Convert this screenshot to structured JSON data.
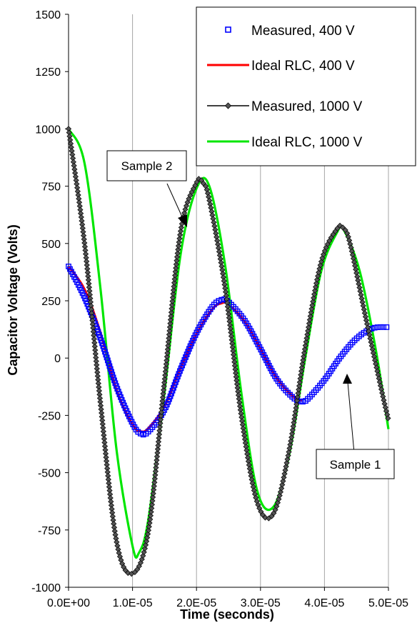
{
  "chart_data": {
    "type": "line",
    "title": "",
    "xlabel": "Time (seconds)",
    "ylabel": "Capacitor Voltage (Volts)",
    "xlim": [
      0,
      5e-05
    ],
    "ylim": [
      -1000,
      1500
    ],
    "x_ticks": [
      0,
      1e-05,
      2e-05,
      3e-05,
      4e-05,
      5e-05
    ],
    "x_tick_labels": [
      "0.0E+00",
      "1.0E-05",
      "2.0E-05",
      "3.0E-05",
      "4.0E-05",
      "5.0E-05"
    ],
    "y_ticks": [
      -1000,
      -750,
      -500,
      -250,
      0,
      250,
      500,
      750,
      1000,
      1250,
      1500
    ],
    "y_tick_labels": [
      "-1000",
      "-750",
      "-500",
      "-250",
      "0",
      "250",
      "500",
      "750",
      "1000",
      "1250",
      "1500"
    ],
    "grid": "vertical",
    "legend": {
      "placement": "top-right"
    },
    "series": [
      {
        "name": "Measured, 400 V",
        "color": "#0000ff",
        "marker": "square-open",
        "line": false,
        "x": [
          0,
          2.5e-06,
          5e-06,
          7.5e-06,
          1e-05,
          1.13e-05,
          1.25e-05,
          1.5e-05,
          1.75e-05,
          2e-05,
          2.25e-05,
          2.4e-05,
          2.5e-05,
          2.75e-05,
          3e-05,
          3.25e-05,
          3.5e-05,
          3.65e-05,
          3.75e-05,
          4e-05,
          4.25e-05,
          4.5e-05,
          4.75e-05,
          5e-05
        ],
        "y": [
          400,
          265,
          85,
          -125,
          -285,
          -330,
          -320,
          -225,
          -50,
          110,
          225,
          255,
          245,
          165,
          40,
          -90,
          -170,
          -190,
          -175,
          -95,
          5,
          85,
          130,
          135
        ]
      },
      {
        "name": "Ideal RLC, 400 V",
        "color": "#ff0000",
        "marker": "none",
        "line": true,
        "x": [
          0,
          2.5e-06,
          5e-06,
          7.5e-06,
          1e-05,
          1.13e-05,
          1.25e-05,
          1.5e-05,
          1.75e-05,
          2e-05,
          2.25e-05,
          2.4e-05,
          2.5e-05,
          2.75e-05,
          3e-05,
          3.25e-05,
          3.5e-05,
          3.65e-05
        ],
        "y": [
          400,
          300,
          110,
          -140,
          -290,
          -320,
          -305,
          -210,
          -45,
          105,
          215,
          240,
          235,
          160,
          40,
          -85,
          -165,
          -185
        ]
      },
      {
        "name": "Measured, 1000 V",
        "color": "#000000",
        "marker": "diamond",
        "line": true,
        "x": [
          0,
          2.5e-06,
          5e-06,
          7.5e-06,
          1e-05,
          1.25e-05,
          1.5e-05,
          1.75e-05,
          2e-05,
          2.1e-05,
          2.2e-05,
          2.45e-05,
          2.7e-05,
          2.95e-05,
          3.2e-05,
          3.45e-05,
          3.7e-05,
          3.95e-05,
          4.2e-05,
          4.3e-05,
          4.4e-05,
          4.65e-05,
          4.9e-05,
          5e-05
        ],
        "y": [
          1000,
          500,
          -200,
          -800,
          -940,
          -750,
          -100,
          550,
          765,
          765,
          690,
          300,
          -250,
          -630,
          -680,
          -400,
          50,
          420,
          565,
          565,
          500,
          170,
          -150,
          -270
        ]
      },
      {
        "name": "Ideal RLC, 1000 V",
        "color": "#00e600",
        "marker": "none",
        "line": true,
        "x": [
          0,
          2.5e-06,
          5e-06,
          7.5e-06,
          1e-05,
          1.1e-05,
          1.25e-05,
          1.5e-05,
          1.75e-05,
          2e-05,
          2.2e-05,
          2.45e-05,
          2.7e-05,
          2.95e-05,
          3.2e-05,
          3.45e-05,
          3.7e-05,
          3.95e-05,
          4.2e-05,
          4.3e-05,
          4.55e-05,
          4.8e-05,
          5e-05
        ],
        "y": [
          1000,
          850,
          300,
          -400,
          -820,
          -850,
          -700,
          -150,
          450,
          740,
          750,
          400,
          -150,
          -580,
          -650,
          -420,
          0,
          380,
          550,
          560,
          380,
          40,
          -310
        ]
      }
    ],
    "annotations": [
      {
        "text": "Sample 2",
        "target": {
          "x": 1.75e-05,
          "y": 620
        }
      },
      {
        "text": "Sample 1",
        "target": {
          "x": 3.9e-05,
          "y": -50
        }
      }
    ]
  }
}
